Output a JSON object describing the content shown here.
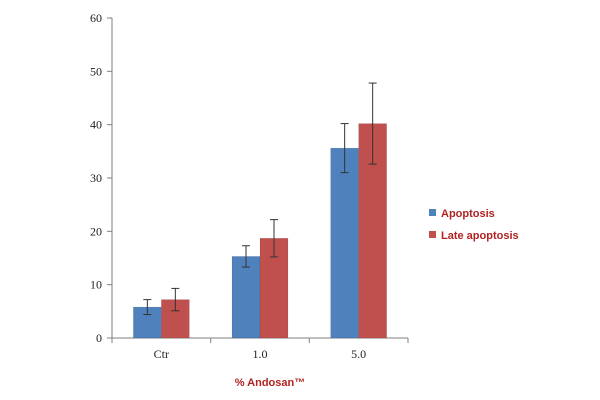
{
  "chart_data": {
    "type": "bar",
    "categories": [
      "Ctr",
      "1.0",
      "5.0"
    ],
    "series": [
      {
        "name": "Apoptosis",
        "color": "#4f81bd",
        "values": [
          5.8,
          15.3,
          35.6
        ],
        "errors": [
          1.4,
          2.0,
          4.6
        ]
      },
      {
        "name": "Late apoptosis",
        "color": "#c0504d",
        "values": [
          7.2,
          18.7,
          40.2
        ],
        "errors": [
          2.1,
          3.5,
          7.6
        ]
      }
    ],
    "xlabel": "% Andosan™",
    "ylabel": "",
    "ylim": [
      0,
      60
    ],
    "yticks": [
      0,
      10,
      20,
      30,
      40,
      50,
      60
    ],
    "legend_position": "right",
    "grid": false
  }
}
